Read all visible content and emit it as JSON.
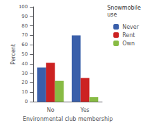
{
  "chart_data": {
    "type": "bar",
    "categories": [
      "No",
      "Yes"
    ],
    "series": [
      {
        "name": "Never",
        "color": "#3a5faa",
        "values": [
          36,
          70
        ]
      },
      {
        "name": "Rent",
        "color": "#cc2222",
        "values": [
          41,
          25
        ]
      },
      {
        "name": "Own",
        "color": "#88bb44",
        "values": [
          22,
          5
        ]
      }
    ],
    "xlabel": "Environmental club membership",
    "ylabel": "Percent",
    "ylim": [
      0,
      100
    ],
    "yticks": [
      0,
      10,
      20,
      30,
      40,
      50,
      60,
      70,
      80,
      90,
      100
    ],
    "legend": "upper right",
    "legend_title": "Snowmobile\nuse",
    "grid": false
  }
}
